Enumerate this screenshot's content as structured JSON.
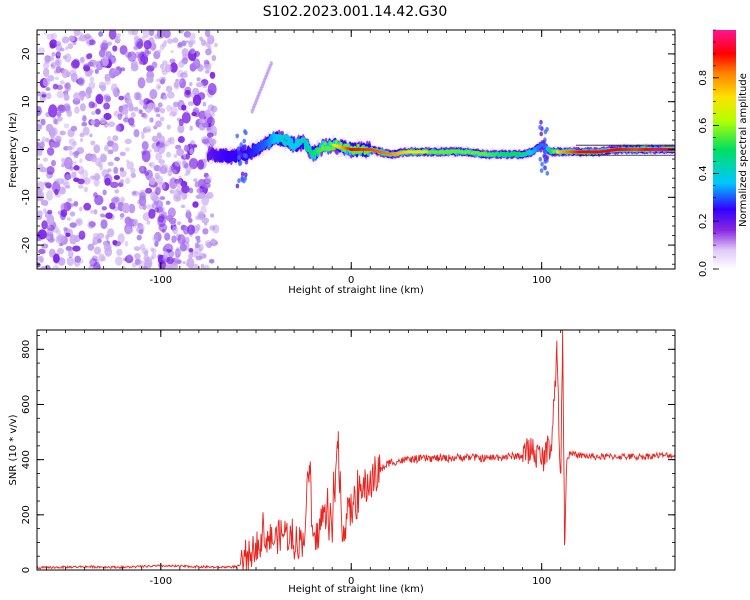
{
  "title": "S102.2023.001.14.42.G30",
  "colors": {
    "snr_line": "#e8231e",
    "noise_purple": "#7b1fe6",
    "noise_light": "#c8a8f0",
    "axes": "#000000"
  },
  "chart_data": [
    {
      "type": "heatmap",
      "xlabel": "Height of straight line (km)",
      "ylabel": "Frequency (Hz)",
      "xlim": [
        -165,
        170
      ],
      "ylim": [
        -25,
        25
      ],
      "x_ticks": [
        -100,
        0,
        100
      ],
      "x_tick_labels": [
        "-100",
        "0",
        "100"
      ],
      "y_ticks": [
        -20,
        -10,
        0,
        10,
        20
      ],
      "y_tick_labels": [
        "-20",
        "-10",
        "0",
        "10",
        "20"
      ],
      "colorbar": {
        "label": "Normalized spectral amplitude",
        "range": [
          0,
          1
        ],
        "ticks": [
          0.0,
          0.2,
          0.4,
          0.6,
          0.8
        ],
        "tick_labels": [
          "0.0",
          "0.2",
          "0.4",
          "0.6",
          "0.8"
        ],
        "colormap": [
          "#ffffff",
          "#e0c8f8",
          "#8a2be2",
          "#3300ff",
          "#00c8ff",
          "#00e060",
          "#b4ff00",
          "#ffe000",
          "#ff8000",
          "#ff0000",
          "#ff1493"
        ]
      },
      "noise_region_xmax": -75,
      "trace": {
        "x": [
          -75,
          -65,
          -55,
          -45,
          -40,
          -35,
          -30,
          -25,
          -20,
          -15,
          -10,
          -5,
          0,
          10,
          20,
          30,
          40,
          50,
          60,
          70,
          80,
          90,
          95,
          100,
          105,
          110,
          120,
          130,
          140,
          150,
          160,
          170
        ],
        "y": [
          -1,
          -1.5,
          -1,
          1,
          2.5,
          2,
          1,
          1.5,
          -1,
          0.5,
          1,
          0.5,
          0,
          0,
          -1,
          -0.5,
          -0.5,
          -0.5,
          -0.5,
          -1,
          -1,
          -1,
          -0.5,
          1,
          -0.5,
          -0.5,
          -0.5,
          -0.5,
          0,
          0,
          0,
          0
        ],
        "amplitude": [
          0.25,
          0.3,
          0.3,
          0.35,
          0.4,
          0.45,
          0.4,
          0.45,
          0.5,
          0.55,
          0.6,
          0.7,
          0.85,
          0.8,
          0.75,
          0.65,
          0.6,
          0.6,
          0.6,
          0.55,
          0.5,
          0.5,
          0.4,
          0.35,
          0.5,
          0.7,
          0.85,
          0.85,
          0.85,
          0.8,
          0.9,
          0.85
        ]
      }
    },
    {
      "type": "line",
      "xlabel": "Height of straight line (km)",
      "ylabel": "SNR (10 * v/v)",
      "xlim": [
        -165,
        170
      ],
      "ylim": [
        0,
        870
      ],
      "x_ticks": [
        -100,
        0,
        100
      ],
      "x_tick_labels": [
        "-100",
        "0",
        "100"
      ],
      "y_ticks": [
        0,
        200,
        400,
        600,
        800
      ],
      "y_tick_labels": [
        "0",
        "200",
        "400",
        "600",
        "800"
      ],
      "series": [
        {
          "x": [
            -165,
            -140,
            -120,
            -100,
            -80,
            -70,
            -60,
            -56,
            -50,
            -45,
            -40,
            -35,
            -30,
            -25,
            -22,
            -20,
            -15,
            -10,
            -7,
            -5,
            0,
            5,
            10,
            15,
            20,
            25,
            30,
            40,
            50,
            60,
            70,
            80,
            90,
            95,
            100,
            105,
            108,
            110,
            111,
            112,
            113,
            115,
            120,
            130,
            140,
            150,
            160,
            170
          ],
          "y": [
            8,
            12,
            10,
            15,
            12,
            10,
            12,
            25,
            90,
            120,
            110,
            140,
            100,
            110,
            380,
            70,
            200,
            160,
            440,
            150,
            220,
            280,
            320,
            360,
            390,
            395,
            400,
            405,
            405,
            410,
            405,
            410,
            415,
            440,
            400,
            460,
            790,
            300,
            870,
            90,
            410,
            420,
            415,
            410,
            412,
            410,
            415,
            415
          ]
        }
      ]
    }
  ]
}
